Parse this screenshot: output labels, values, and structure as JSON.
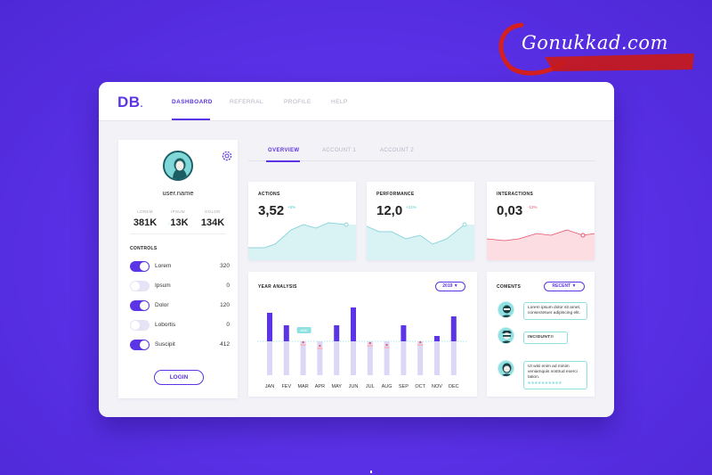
{
  "watermark": {
    "brand": "Gonukkad.com"
  },
  "app": {
    "logo": "DB"
  },
  "nav": {
    "items": [
      "DASHBOARD",
      "REFERRAL",
      "PROFILE",
      "HELP"
    ],
    "active": "DASHBOARD"
  },
  "profile": {
    "username": "user.name",
    "stats": [
      {
        "label": "LOREM",
        "value": "381K"
      },
      {
        "label": "IPSUM",
        "value": "13K"
      },
      {
        "label": "DOLOR",
        "value": "134K"
      }
    ],
    "controls_title": "CONTROLS",
    "controls": [
      {
        "label": "Lorem",
        "value": "320",
        "on": true
      },
      {
        "label": "Ipsum",
        "value": "0",
        "on": false
      },
      {
        "label": "Dolor",
        "value": "120",
        "on": true
      },
      {
        "label": "Lobortis",
        "value": "0",
        "on": false
      },
      {
        "label": "Suscipit",
        "value": "412",
        "on": true
      }
    ],
    "login_label": "LOGIN"
  },
  "subtabs": {
    "items": [
      "OVERVIEW",
      "ACCOUNT 1",
      "ACCOUNT 2"
    ],
    "active": "OVERVIEW"
  },
  "metrics": [
    {
      "title": "ACTIONS",
      "value": "3,52",
      "delta": "+5%",
      "trend": "up"
    },
    {
      "title": "PERFORMANCE",
      "value": "12,0",
      "delta": "+21%",
      "trend": "up"
    },
    {
      "title": "INTERACTIONS",
      "value": "0,03",
      "delta": "-12%",
      "trend": "down"
    }
  ],
  "year_analysis": {
    "title": "YEAR ANALYSIS",
    "year": "2019",
    "badge": "###K"
  },
  "chart_data": {
    "type": "bar",
    "title": "YEAR ANALYSIS",
    "categories": [
      "JAN",
      "FEV",
      "MAR",
      "APR",
      "MAY",
      "JUN",
      "JUL",
      "AUG",
      "SEP",
      "OCT",
      "NOV",
      "DEC"
    ],
    "series": [
      {
        "values": [
          80,
          45,
          0,
          0,
          45,
          95,
          0,
          0,
          45,
          0,
          15,
          70
        ]
      }
    ],
    "ylim": [
      -100,
      100
    ]
  },
  "comments": {
    "title": "COMENTS",
    "filter": "RECENT",
    "items": [
      {
        "text": "Lorem ipsum dolor sit amet, consectetuer adipiscing elit."
      },
      {
        "text": "INCIDUNT!!"
      },
      {
        "text": "Ut wisi enim ad minim veniamquis nostrud exerci tation."
      }
    ]
  },
  "colors": {
    "accent": "#5b34e6",
    "teal": "#8fe0e0",
    "pink": "#f2b3bd",
    "red": "#e8506a"
  }
}
